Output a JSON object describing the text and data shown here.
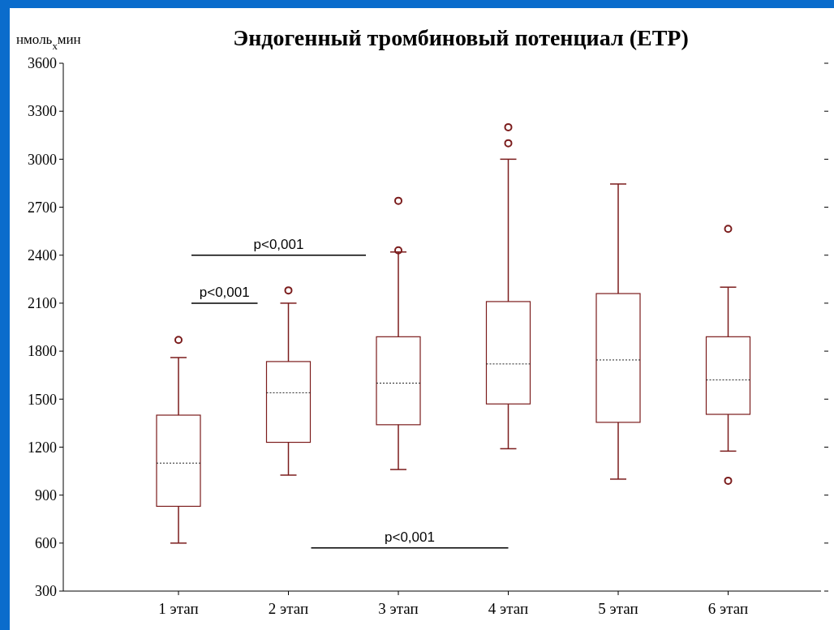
{
  "chart_data": {
    "type": "box",
    "title": "Эндогенный тромбиновый потенциал (ETP)",
    "ylabel": "нмоль$_{x}$мин",
    "categories": [
      "1 этап",
      "2 этап",
      "3 этап",
      "4 этап",
      "5 этап",
      "6 этап"
    ],
    "color": "#7b1c1c",
    "boxes": [
      {
        "low": 600,
        "q1": 830,
        "median": 1100,
        "q3": 1400,
        "high": 1760,
        "outliers": [
          1870
        ]
      },
      {
        "low": 1025,
        "q1": 1230,
        "median": 1540,
        "q3": 1735,
        "high": 2100,
        "outliers": [
          2180
        ]
      },
      {
        "low": 1060,
        "q1": 1340,
        "median": 1600,
        "q3": 1890,
        "high": 2420,
        "outliers": [
          2430,
          2740
        ]
      },
      {
        "low": 1190,
        "q1": 1470,
        "median": 1720,
        "q3": 2110,
        "high": 3000,
        "outliers": [
          3100,
          3200
        ]
      },
      {
        "low": 1000,
        "q1": 1355,
        "median": 1745,
        "q3": 2160,
        "high": 2845
      },
      {
        "low": 1175,
        "q1": 1405,
        "median": 1620,
        "q3": 1890,
        "high": 2200,
        "outliers": [
          2565,
          990
        ]
      }
    ],
    "ylim": [
      300,
      3600
    ],
    "yticks": [
      300,
      600,
      900,
      1200,
      1500,
      1800,
      2100,
      2400,
      2700,
      3000,
      3300,
      3600
    ],
    "grid": false,
    "annotations": [
      "p<0,001",
      "p<0,001",
      "p<0,001"
    ]
  }
}
